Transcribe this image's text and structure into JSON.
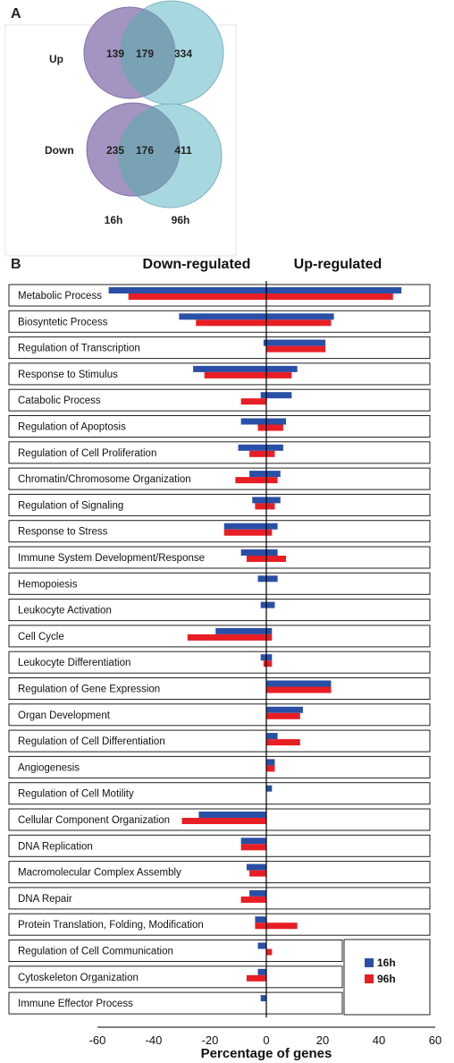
{
  "panels": {
    "a": "A",
    "b": "B"
  },
  "venn": {
    "rows": [
      {
        "label": "Up",
        "left_only": "139",
        "overlap": "179",
        "right_only": "334"
      },
      {
        "label": "Down",
        "left_only": "235",
        "overlap": "176",
        "right_only": "411"
      }
    ],
    "set_labels": [
      "16h",
      "96h"
    ],
    "colors": {
      "left": "#a394c2",
      "right": "#a8d8df",
      "overlap": "#7aa2b5"
    }
  },
  "chart_data": {
    "type": "bar",
    "orientation": "horizontal",
    "header_left": "Down-regulated",
    "header_right": "Up-regulated",
    "xlabel": "Percentage of genes",
    "xlim": [
      -60,
      60
    ],
    "xticks": [
      "-60",
      "-40",
      "-20",
      "0",
      "20",
      "40",
      "60"
    ],
    "legend": "bottom-right",
    "categories": [
      "Metabolic Process",
      "Biosyntetic Process",
      "Regulation of Transcription",
      "Response to Stimulus",
      "Catabolic Process",
      "Regulation of Apoptosis",
      "Regulation of Cell Proliferation",
      "Chromatin/Chromosome Organization",
      "Regulation of Signaling",
      "Response to Stress",
      "Immune System Development/Response",
      "Hemopoiesis",
      "Leukocyte Activation",
      "Cell Cycle",
      "Leukocyte Differentiation",
      "Regulation of Gene Expression",
      "Organ Development",
      "Regulation of Cell Differentiation",
      "Angiogenesis",
      "Regulation of Cell Motility",
      "Cellular Component Organization",
      "DNA Replication",
      "Macromolecular Complex Assembly",
      "DNA Repair",
      "Protein Translation, Folding, Modification",
      "Regulation of Cell Communication",
      "Cytoskeleton Organization",
      "Immune Effector Process"
    ],
    "series": [
      {
        "name": "16h",
        "color": "#2a4fa6",
        "down": [
          -56,
          -31,
          -1,
          -26,
          -2,
          -9,
          -10,
          -6,
          -5,
          -15,
          -9,
          -3,
          -2,
          -18,
          -2,
          0,
          0,
          0,
          0,
          0,
          -24,
          -9,
          -7,
          -6,
          -4,
          -3,
          -3,
          -2
        ],
        "up": [
          48,
          24,
          21,
          11,
          9,
          7,
          6,
          5,
          5,
          4,
          4,
          4,
          3,
          2,
          2,
          23,
          13,
          4,
          3,
          2,
          0,
          0,
          0,
          0,
          0,
          0,
          0,
          0
        ]
      },
      {
        "name": "96h",
        "color": "#e81e25",
        "down": [
          -49,
          -25,
          0,
          -22,
          -9,
          -3,
          -6,
          -11,
          -4,
          -15,
          -7,
          0,
          0,
          -28,
          -1,
          0,
          0,
          0,
          0,
          0,
          -30,
          -9,
          -6,
          -9,
          -4,
          0,
          -7,
          0
        ],
        "up": [
          45,
          23,
          21,
          9,
          0,
          6,
          3,
          4,
          3,
          2,
          7,
          0,
          0,
          2,
          2,
          23,
          12,
          12,
          3,
          0,
          0,
          0,
          0,
          0,
          11,
          2,
          0,
          0
        ]
      }
    ]
  }
}
